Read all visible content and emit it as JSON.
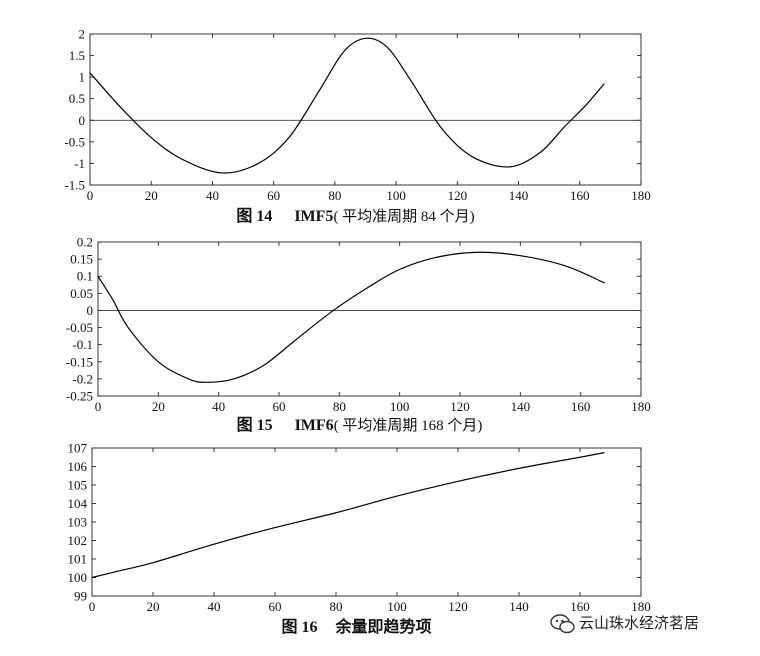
{
  "chart_data": [
    {
      "type": "line",
      "caption": {
        "number": "图 14",
        "label": "IMF5",
        "suffix": "( 平均准周期 84 个月)"
      },
      "xlim": [
        0,
        180
      ],
      "ylim": [
        -1.5,
        2
      ],
      "xticks": [
        "0",
        "20",
        "40",
        "60",
        "80",
        "100",
        "120",
        "140",
        "160",
        "180"
      ],
      "yticks": [
        "2",
        "1.5",
        "1",
        "0.5",
        "0",
        "-0.5",
        "-1",
        "-1.5"
      ],
      "zero_line": true,
      "series": [
        {
          "x": [
            0,
            10,
            20,
            30,
            43,
            55,
            65,
            75,
            83,
            90,
            97,
            105,
            115,
            125,
            137,
            147,
            155,
            162,
            168
          ],
          "y": [
            1.1,
            0.3,
            -0.4,
            -0.9,
            -1.22,
            -1.0,
            -0.4,
            0.7,
            1.6,
            1.9,
            1.7,
            0.9,
            -0.2,
            -0.85,
            -1.08,
            -0.75,
            -0.15,
            0.35,
            0.85
          ]
        }
      ]
    },
    {
      "type": "line",
      "caption": {
        "number": "图 15",
        "label": "IMF6",
        "suffix": "( 平均准周期 168 个月)"
      },
      "xlim": [
        0,
        180
      ],
      "ylim": [
        -0.25,
        0.2
      ],
      "xticks": [
        "0",
        "20",
        "40",
        "60",
        "80",
        "100",
        "120",
        "140",
        "160",
        "180"
      ],
      "yticks": [
        "0.2",
        "0.15",
        "0.1",
        "0.05",
        "0",
        "-0.05",
        "-0.1",
        "-0.15",
        "-0.2",
        "-0.25"
      ],
      "zero_line": true,
      "series": [
        {
          "x": [
            0,
            5,
            10,
            20,
            30,
            36,
            45,
            55,
            65,
            78,
            90,
            100,
            112,
            126,
            140,
            155,
            168
          ],
          "y": [
            0.1,
            0.03,
            -0.05,
            -0.15,
            -0.2,
            -0.21,
            -0.2,
            -0.16,
            -0.09,
            0.0,
            0.07,
            0.12,
            0.155,
            0.17,
            0.16,
            0.13,
            0.08
          ]
        }
      ]
    },
    {
      "type": "line",
      "caption": {
        "number": "图 16",
        "label": "",
        "suffix": "余量即趋势项"
      },
      "xlim": [
        0,
        180
      ],
      "ylim": [
        99,
        107
      ],
      "xticks": [
        "0",
        "20",
        "40",
        "60",
        "80",
        "100",
        "120",
        "140",
        "160",
        "180"
      ],
      "yticks": [
        "107",
        "106",
        "105",
        "104",
        "103",
        "102",
        "101",
        "100",
        "99"
      ],
      "zero_line": false,
      "series": [
        {
          "x": [
            0,
            10,
            20,
            40,
            60,
            80,
            100,
            120,
            140,
            160,
            168
          ],
          "y": [
            100.0,
            100.4,
            100.8,
            101.8,
            102.7,
            103.5,
            104.4,
            105.2,
            105.9,
            106.5,
            106.75
          ]
        }
      ]
    }
  ],
  "watermark": {
    "text": "云山珠水经济茗居"
  }
}
